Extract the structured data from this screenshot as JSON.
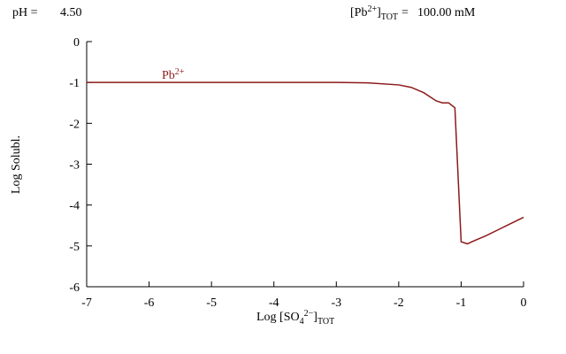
{
  "chart_data": {
    "type": "line",
    "header_left": {
      "label": "pH =",
      "value": "4.50"
    },
    "header_right": [
      "[Pb",
      "2+",
      "]",
      "TOT",
      "=",
      "100.00 mM"
    ],
    "x_label": [
      "Log [SO",
      "4",
      "2−",
      "]",
      "TOT"
    ],
    "y_label": "Log Solubl.",
    "x": [
      -7,
      -6,
      -5,
      -4,
      -3,
      -2.5,
      -2,
      -1.8,
      -1.6,
      -1.4,
      -1.3,
      -1.2,
      -1.1,
      -1.0,
      -0.9,
      -0.8,
      -0.6,
      -0.4,
      -0.2,
      0
    ],
    "series": [
      {
        "label": [
          "Pb",
          "2+"
        ],
        "color": "#8b1a1a",
        "values": [
          -1,
          -1,
          -1,
          -1,
          -1,
          -1.01,
          -1.06,
          -1.12,
          -1.25,
          -1.45,
          -1.5,
          -1.5,
          -1.62,
          -4.9,
          -4.95,
          -4.88,
          -4.75,
          -4.6,
          -4.45,
          -4.3
        ]
      }
    ],
    "xlim": [
      -7,
      0
    ],
    "ylim": [
      -6,
      0
    ],
    "xticks": [
      -7,
      -6,
      -5,
      -4,
      -3,
      -2,
      -1,
      0
    ],
    "yticks": [
      0,
      -1,
      -2,
      -3,
      -4,
      -5,
      -6
    ]
  }
}
